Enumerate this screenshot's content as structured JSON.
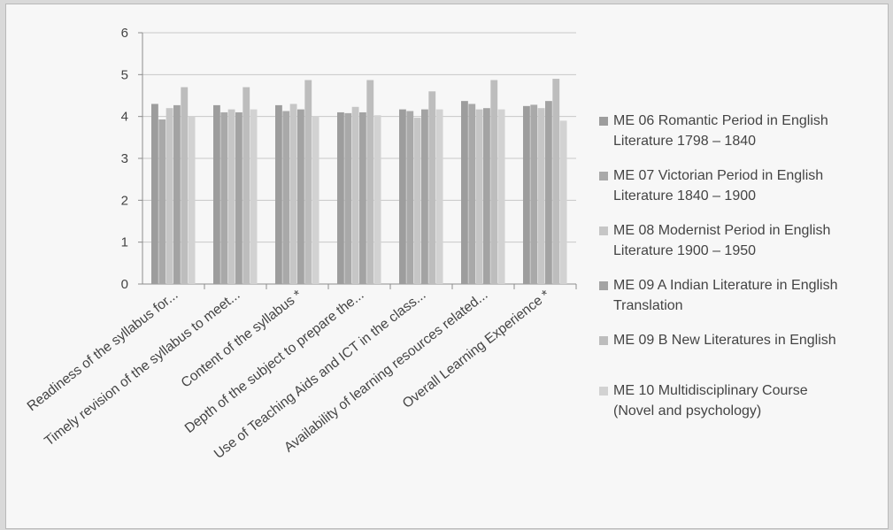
{
  "chart_data": {
    "type": "bar",
    "title": "",
    "xlabel": "",
    "ylabel": "",
    "ylim": [
      0,
      6
    ],
    "yticks": [
      0,
      1,
      2,
      3,
      4,
      5,
      6
    ],
    "grid": true,
    "legend_position": "right",
    "categories": [
      "Readiness of the syllabus for...",
      "Timely revision of the syllabus to meet...",
      "Content of the syllabus *",
      "Depth of the subject to prepare the...",
      "Use of Teaching Aids and ICT in the class...",
      "Availability of learning resources related...",
      "Overall Learning Experience *"
    ],
    "series": [
      {
        "name": "ME 06 Romantic Period in English\nLiterature 1798 – 1840",
        "color": "#9d9d9d",
        "values": [
          4.3,
          4.27,
          4.27,
          4.1,
          4.17,
          4.37,
          4.25
        ]
      },
      {
        "name": "ME 07 Victorian Period in English\nLiterature 1840 – 1900",
        "color": "#a9a9a9",
        "values": [
          3.93,
          4.1,
          4.13,
          4.08,
          4.13,
          4.3,
          4.28
        ]
      },
      {
        "name": "ME 08 Modernist Period in English\nLiterature 1900 – 1950",
        "color": "#c6c6c6",
        "values": [
          4.2,
          4.17,
          4.3,
          4.23,
          3.97,
          4.17,
          4.2
        ]
      },
      {
        "name": "ME 09 A Indian Literature in English\nTranslation",
        "color": "#a3a3a3",
        "values": [
          4.27,
          4.1,
          4.17,
          4.1,
          4.17,
          4.2,
          4.37
        ]
      },
      {
        "name": "ME 09 B New Literatures in English",
        "color": "#bdbdbd",
        "values": [
          4.7,
          4.7,
          4.87,
          4.87,
          4.6,
          4.87,
          4.9
        ]
      },
      {
        "name": "ME 10 Multidisciplinary Course\n(Novel and psychology)",
        "color": "#d2d2d2",
        "values": [
          4.0,
          4.17,
          4.0,
          4.03,
          4.17,
          4.17,
          3.9
        ]
      }
    ]
  }
}
